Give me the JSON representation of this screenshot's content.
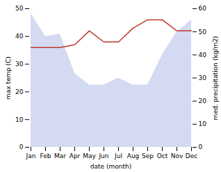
{
  "chart_data": {
    "type": "line",
    "categories": [
      "Jan",
      "Feb",
      "Mar",
      "Apr",
      "May",
      "Jun",
      "Jul",
      "Aug",
      "Sep",
      "Oct",
      "Nov",
      "Dec"
    ],
    "xlabel": "date (month)",
    "ylabel": "max temp (C)",
    "y2label": "med. precipitation (kg/m2)",
    "ylim": [
      0,
      50
    ],
    "yticks": [
      0,
      10,
      20,
      30,
      40,
      50
    ],
    "y2lim": [
      0,
      60
    ],
    "y2ticks": [
      0,
      10,
      20,
      30,
      40,
      50,
      60
    ],
    "grid": false,
    "series": [
      {
        "type": "area",
        "axis": "y2",
        "color": "#b0bce8",
        "values": [
          58,
          48,
          49,
          32,
          27,
          27,
          30,
          27,
          27,
          40,
          50,
          55
        ]
      },
      {
        "type": "line",
        "color": "#c0392b",
        "values": [
          36,
          36,
          36,
          37,
          42,
          38,
          38,
          43,
          46,
          46,
          42,
          42
        ]
      }
    ]
  }
}
